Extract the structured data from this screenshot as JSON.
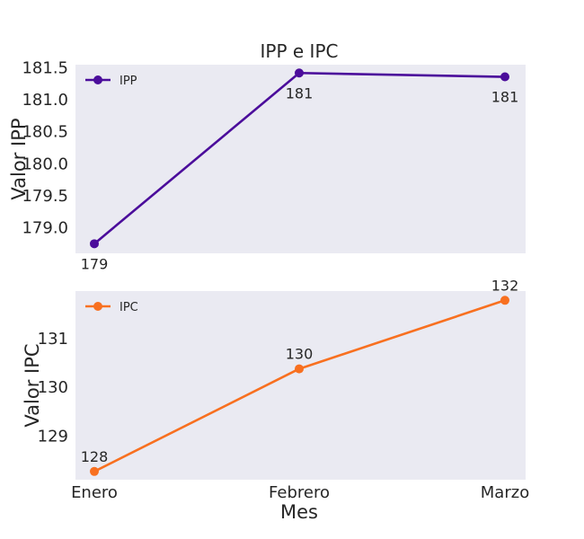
{
  "figure_title": "IPP e IPC",
  "xlabel": "Mes",
  "chart_data": [
    {
      "type": "line",
      "categories": [
        "Enero",
        "Febrero",
        "Marzo"
      ],
      "series": [
        {
          "name": "IPP",
          "values": [
            178.75,
            181.42,
            181.36
          ],
          "color": "#4b0d9b"
        }
      ],
      "data_labels": [
        "179",
        "181",
        "181"
      ],
      "ylabel": "Valor IPP",
      "ylim": [
        178.6,
        181.55
      ],
      "yticks": [
        179.0,
        179.5,
        180.0,
        180.5,
        181.0,
        181.5
      ],
      "ytick_labels": [
        "179.0",
        "179.5",
        "180.0",
        "180.5",
        "181.0",
        "181.5"
      ],
      "legend": "top-left",
      "grid": false,
      "background": "#eaeaf2"
    },
    {
      "type": "line",
      "categories": [
        "Enero",
        "Febrero",
        "Marzo"
      ],
      "series": [
        {
          "name": "IPC",
          "values": [
            128.27,
            130.38,
            131.79
          ],
          "color": "#f87020"
        }
      ],
      "data_labels": [
        "128",
        "130",
        "132"
      ],
      "ylabel": "Valor IPC",
      "ylim": [
        128.1,
        131.98
      ],
      "yticks": [
        129,
        130,
        131
      ],
      "ytick_labels": [
        "129",
        "130",
        "131"
      ],
      "xtick_labels": [
        "Enero",
        "Febrero",
        "Marzo"
      ],
      "legend": "top-left",
      "grid": false,
      "background": "#eaeaf2"
    }
  ]
}
